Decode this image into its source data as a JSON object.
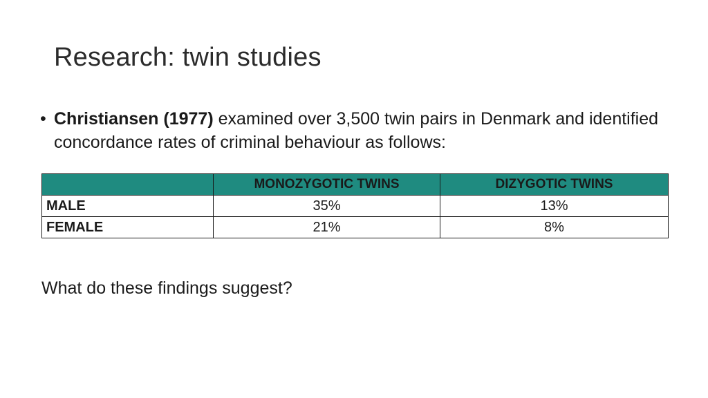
{
  "slide": {
    "title": "Research: twin studies",
    "bullet": {
      "symbol": "•",
      "bold": "Christiansen (1977)",
      "text": " examined over 3,500 twin pairs in Denmark and identified concordance rates of criminal behaviour as follows:"
    },
    "table": {
      "header_color": "#1f8b80",
      "headers": [
        "",
        "MONOZYGOTIC TWINS",
        "DIZYGOTIC TWINS"
      ],
      "rows": [
        {
          "label": "MALE",
          "monozygotic": "35%",
          "dizygotic": "13%"
        },
        {
          "label": "FEMALE",
          "monozygotic": "21%",
          "dizygotic": "8%"
        }
      ]
    },
    "question": "What do these findings suggest?"
  }
}
